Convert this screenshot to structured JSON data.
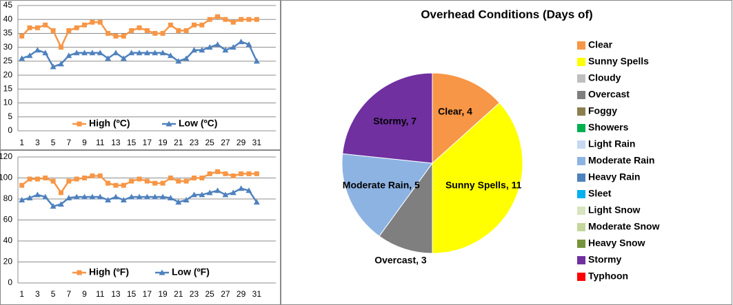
{
  "chart_data": [
    {
      "type": "line",
      "categories": [
        1,
        null,
        3,
        null,
        5,
        null,
        7,
        null,
        9,
        null,
        11,
        null,
        13,
        null,
        15,
        null,
        17,
        null,
        19,
        null,
        21,
        null,
        23,
        null,
        25,
        null,
        27,
        null,
        29,
        null,
        31
      ],
      "series": [
        {
          "name": "High (ºC)",
          "color": "#f79646",
          "marker": "square",
          "values": [
            34,
            37,
            37,
            38,
            36,
            30,
            36,
            37,
            38,
            39,
            39,
            35,
            34,
            34,
            36,
            37,
            36,
            35,
            35,
            38,
            36,
            36,
            38,
            38,
            40,
            41,
            40,
            39,
            40,
            40,
            40
          ]
        },
        {
          "name": "Low (ºC)",
          "color": "#4f81bd",
          "marker": "triangle",
          "values": [
            26,
            27,
            29,
            28,
            23,
            24,
            27,
            28,
            28,
            28,
            28,
            26,
            28,
            26,
            28,
            28,
            28,
            28,
            28,
            27,
            25,
            26,
            29,
            29,
            30,
            31,
            29,
            30,
            32,
            31,
            25
          ]
        }
      ],
      "ylim": [
        0,
        45
      ],
      "yticks": [
        0,
        5,
        10,
        15,
        20,
        25,
        30,
        35,
        40,
        45
      ],
      "grid": true,
      "legend": "bottom"
    },
    {
      "type": "line",
      "categories": [
        1,
        null,
        3,
        null,
        5,
        null,
        7,
        null,
        9,
        null,
        11,
        null,
        13,
        null,
        15,
        null,
        17,
        null,
        19,
        null,
        21,
        null,
        23,
        null,
        25,
        null,
        27,
        null,
        29,
        null,
        31
      ],
      "series": [
        {
          "name": "High (ºF)",
          "color": "#f79646",
          "marker": "square",
          "values": [
            93,
            99,
            99,
            100,
            97,
            86,
            97,
            99,
            100,
            102,
            102,
            95,
            93,
            93,
            97,
            99,
            97,
            95,
            95,
            100,
            97,
            97,
            100,
            100,
            104,
            106,
            104,
            102,
            104,
            104,
            104
          ]
        },
        {
          "name": "Low (ºF)",
          "color": "#4f81bd",
          "marker": "triangle",
          "values": [
            79,
            81,
            84,
            82,
            73,
            75,
            81,
            82,
            82,
            82,
            82,
            79,
            82,
            79,
            82,
            82,
            82,
            82,
            82,
            81,
            77,
            79,
            84,
            84,
            86,
            88,
            84,
            86,
            90,
            88,
            77
          ]
        }
      ],
      "ylim": [
        0,
        120
      ],
      "yticks": [
        0,
        20,
        40,
        60,
        80,
        100,
        120
      ],
      "grid": true,
      "legend": "bottom"
    },
    {
      "type": "pie",
      "title": "Overhead Conditions (Days of)",
      "categories": [
        "Clear",
        "Sunny Spells",
        "Cloudy",
        "Overcast",
        "Foggy",
        "Showers",
        "Light Rain",
        "Moderate Rain",
        "Heavy Rain",
        "Sleet",
        "Light Snow",
        "Moderate Snow",
        "Heavy Snow",
        "Stormy",
        "Typhoon"
      ],
      "values": [
        4,
        11,
        0,
        3,
        0,
        0,
        0,
        5,
        0,
        0,
        0,
        0,
        0,
        7,
        0
      ],
      "value_labels": [
        "Clear, 4",
        "Sunny Spells, 11",
        null,
        "Overcast, 3",
        null,
        null,
        null,
        "Moderate Rain, 5",
        null,
        null,
        null,
        null,
        null,
        "Stormy, 7",
        null
      ],
      "colors": [
        "#f79646",
        "#ffff00",
        "#bfbfbf",
        "#7f7f7f",
        "#8c7f4f",
        "#00b050",
        "#c6d9f1",
        "#8db3e2",
        "#4f81bd",
        "#00b0f0",
        "#d7e4bd",
        "#c3d69b",
        "#77933c",
        "#7030a0",
        "#ff0000"
      ],
      "legend": "right"
    }
  ]
}
